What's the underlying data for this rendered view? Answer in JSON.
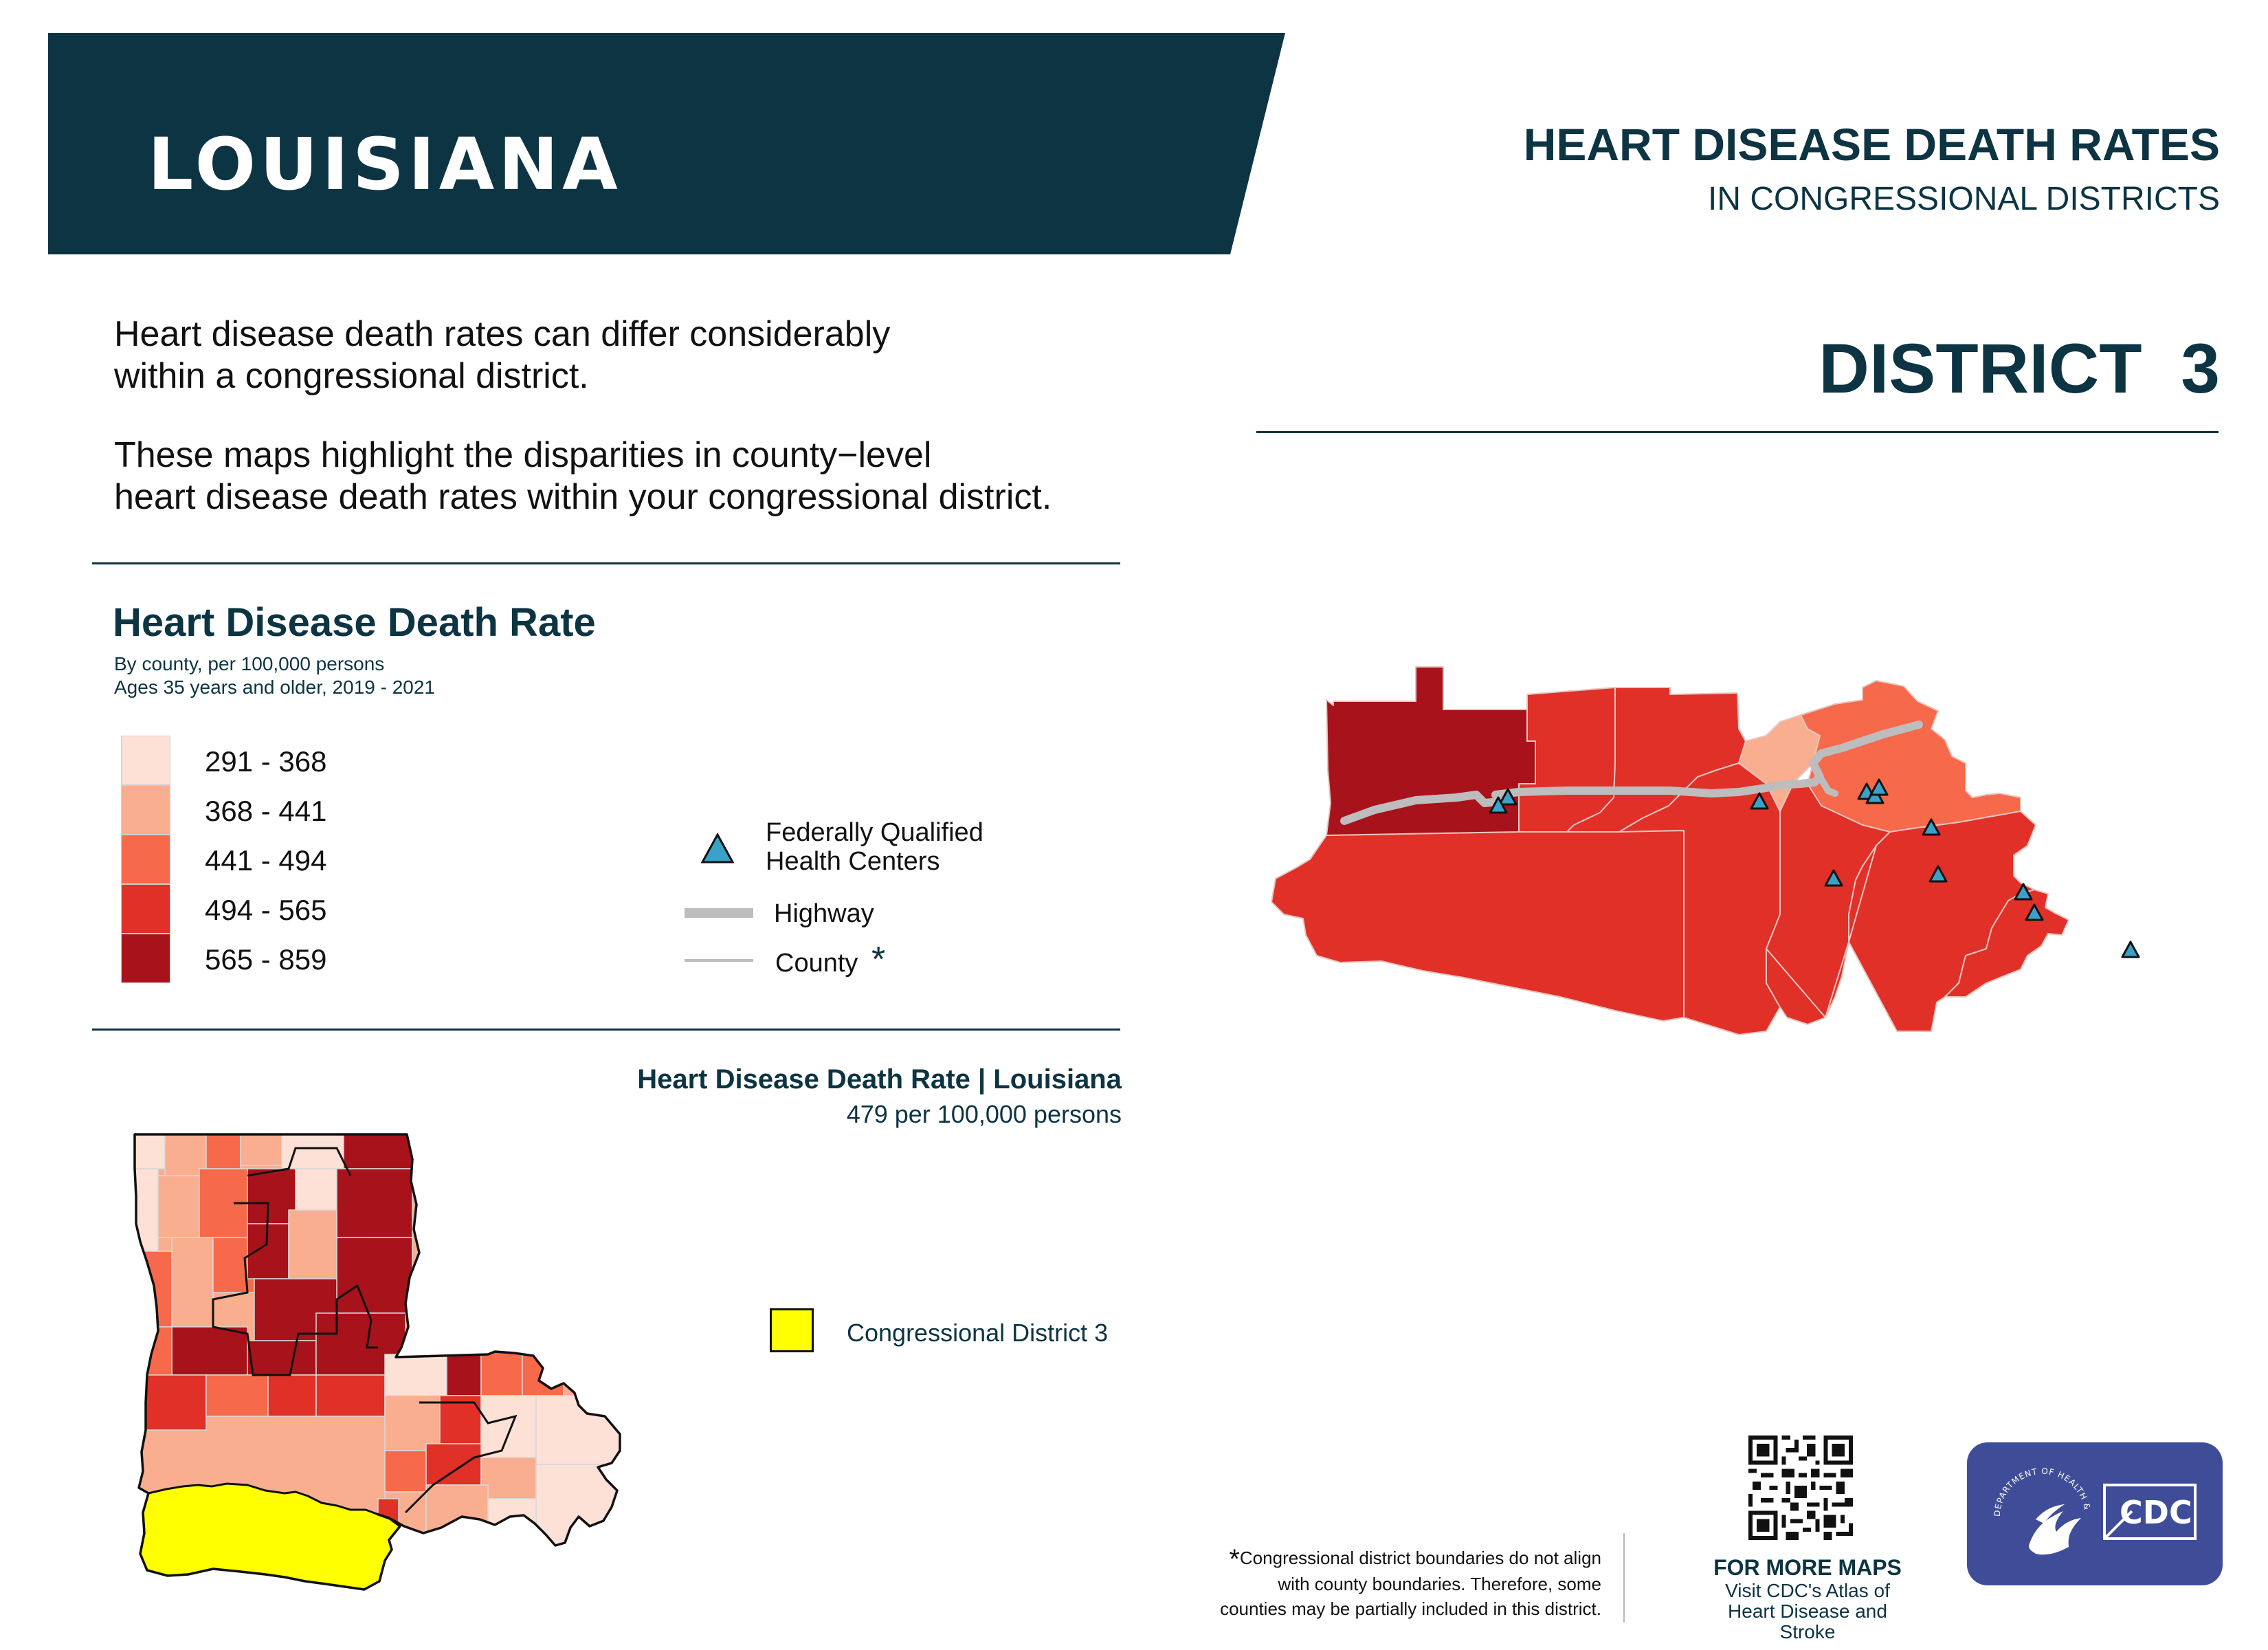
{
  "header": {
    "state_name": "LOUISIANA",
    "title": "HEART DISEASE DEATH RATES",
    "subtitle": "IN CONGRESSIONAL DISTRICTS",
    "district": "DISTRICT  3"
  },
  "intro": {
    "paragraph_1": "Heart disease death rates can differ considerably\nwithin a congressional district.",
    "paragraph_2": "These maps highlight the disparities in county−level\nheart disease death rates within your congressional district."
  },
  "legend": {
    "title": "Heart Disease Death Rate",
    "sub_1": "By county, per 100,000 persons",
    "sub_2": "Ages 35 years and older, 2019 - 2021",
    "classes": [
      {
        "label": "291 - 368",
        "color": "#fde1d6"
      },
      {
        "label": "368 - 441",
        "color": "#f9ae90"
      },
      {
        "label": "441 - 494",
        "color": "#f6694a"
      },
      {
        "label": "494 - 565",
        "color": "#e03027"
      },
      {
        "label": "565 - 859",
        "color": "#a8121b"
      }
    ],
    "fqhc_line_1": "Federally Qualified",
    "fqhc_line_2": "Health Centers",
    "highway_label": "Highway",
    "county_label": "County",
    "county_asterisk": "*"
  },
  "state_rate": {
    "title": "Heart Disease Death Rate | Louisiana",
    "value": "479 per 100,000 persons"
  },
  "district_key": {
    "label": "Congressional District 3",
    "color": "#ffff00"
  },
  "footnote": {
    "star": "*",
    "line_1": "Congressional district boundaries do not align",
    "line_2": "with county boundaries. Therefore, some",
    "line_3": "counties may be partially included in this district."
  },
  "more_maps": {
    "title": "FOR MORE MAPS",
    "line_1": "Visit CDC's Atlas of",
    "line_2": "Heart Disease and Stroke"
  },
  "logos": {
    "hhs_text": "DEPARTMENT OF HEALTH & HUMAN SERVICES·USA",
    "cdc_text": "CDC",
    "logo_background": "#3f4d99"
  },
  "colors": {
    "navy": "#0d3442",
    "fqhc_marker": "#3aa2c8",
    "highway": "#bdbdbd"
  },
  "icons": [
    "fqhc-triangle-icon",
    "highway-line-icon",
    "county-line-icon",
    "qr-code-icon",
    "hhs-eagle-icon",
    "cdc-logo-icon"
  ]
}
